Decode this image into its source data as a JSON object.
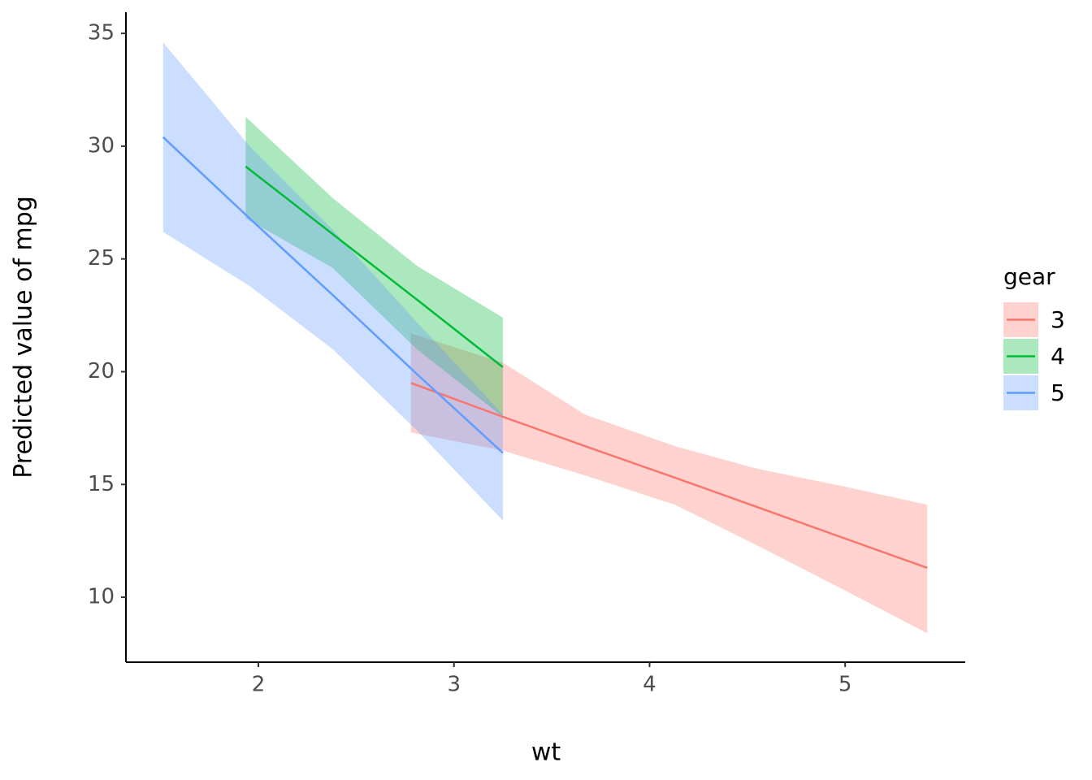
{
  "chart_data": {
    "type": "line",
    "x_label": "wt",
    "y_label": "Predicted value of mpg",
    "legend_title": "gear",
    "legend": "right",
    "xlim": [
      1.323,
      5.614
    ],
    "ylim": [
      7.12,
      35.94
    ],
    "xticks": [
      2,
      3,
      4,
      5
    ],
    "yticks": [
      10,
      15,
      20,
      25,
      30,
      35
    ],
    "series": [
      {
        "name": "3",
        "color": "#F8766D",
        "x": [
          2.78,
          3.25,
          3.67,
          4.13,
          4.55,
          5.0,
          5.42
        ],
        "values": [
          19.5,
          18.0,
          16.7,
          15.3,
          14.0,
          12.6,
          11.3
        ],
        "lower": [
          17.3,
          16.5,
          15.4,
          14.1,
          12.3,
          10.3,
          8.4
        ],
        "upper": [
          21.7,
          20.4,
          18.1,
          16.7,
          15.7,
          14.9,
          14.1
        ]
      },
      {
        "name": "4",
        "color": "#00BA38",
        "x": [
          1.935,
          2.38,
          2.81,
          3.25
        ],
        "values": [
          29.1,
          26.1,
          23.2,
          20.2
        ],
        "lower": [
          26.8,
          24.6,
          21.0,
          18.0
        ],
        "upper": [
          31.3,
          27.7,
          24.7,
          22.4
        ]
      },
      {
        "name": "5",
        "color": "#619CFF",
        "x": [
          1.513,
          1.955,
          2.38,
          2.81,
          3.25
        ],
        "values": [
          30.4,
          26.8,
          23.4,
          19.9,
          16.4
        ],
        "lower": [
          26.2,
          23.8,
          21.0,
          17.4,
          13.4
        ],
        "upper": [
          34.6,
          30.0,
          26.3,
          22.2,
          18.1
        ]
      }
    ]
  }
}
